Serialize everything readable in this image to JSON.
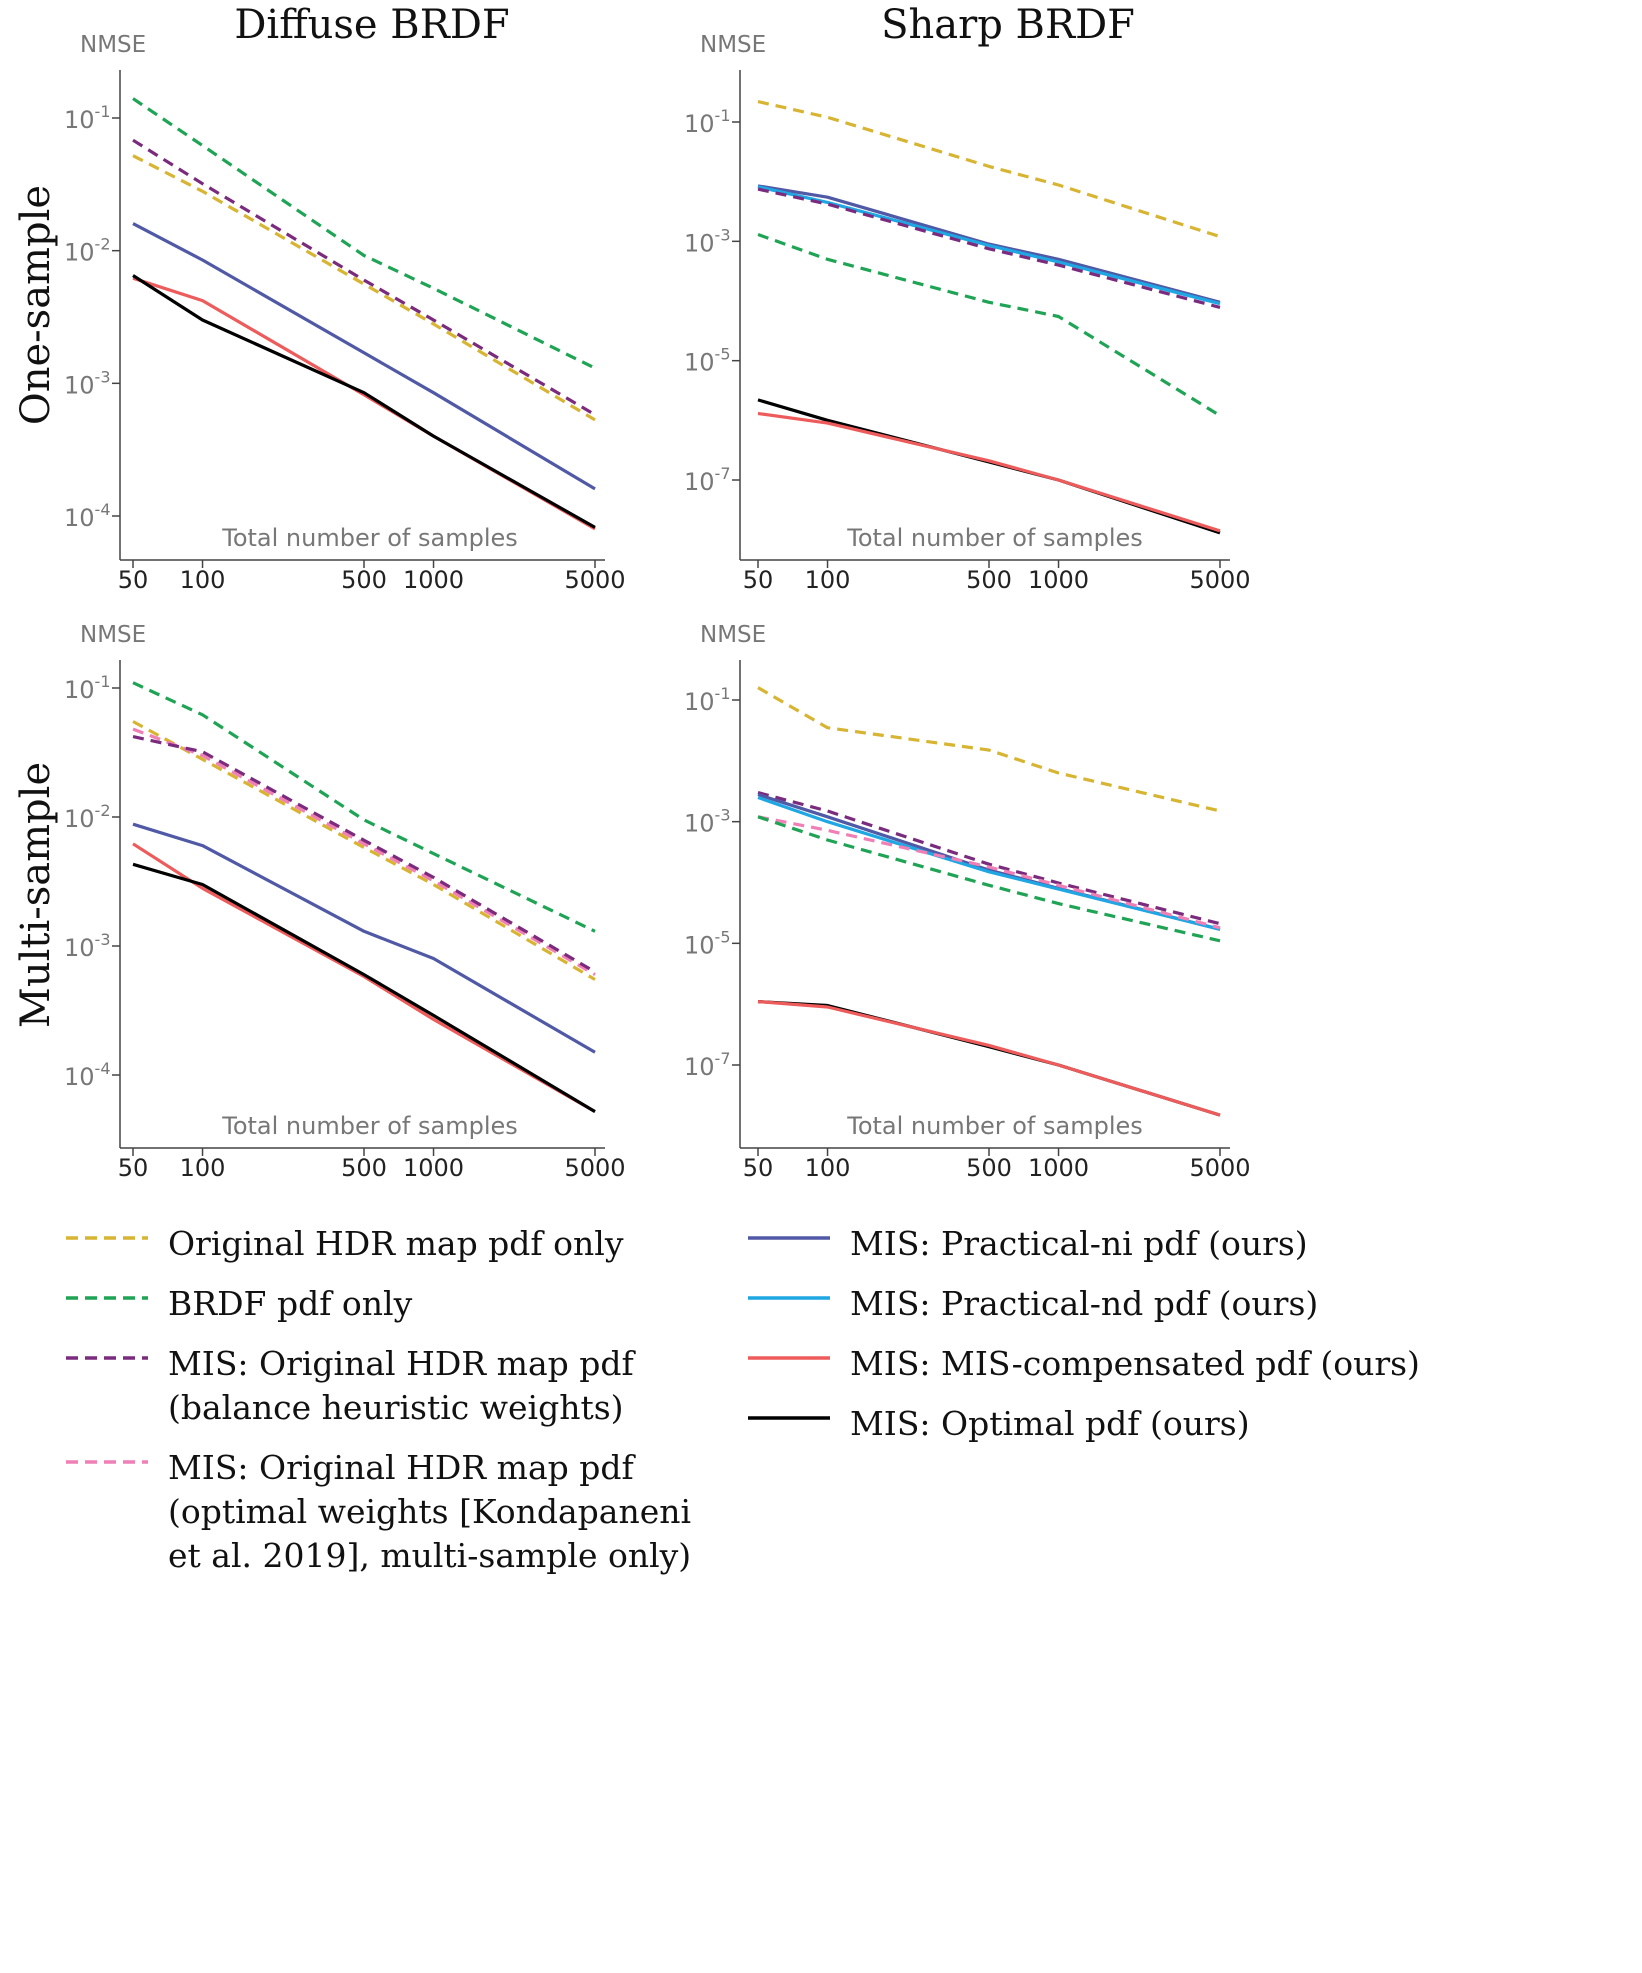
{
  "column_titles": [
    "Diffuse BRDF",
    "Sharp BRDF"
  ],
  "row_titles": [
    "One-sample",
    "Multi-sample"
  ],
  "legend": [
    {
      "key": "hdr",
      "label": "Original HDR map pdf only",
      "color": "#d7b431",
      "dash": true
    },
    {
      "key": "brdf",
      "label": "BRDF pdf only",
      "color": "#1fa455",
      "dash": true
    },
    {
      "key": "mis_hdr_bal",
      "label": "MIS: Original HDR map pdf (balance heuristic weights)",
      "color": "#7b2b7e",
      "dash": true
    },
    {
      "key": "mis_hdr_opt",
      "label": "MIS: Original HDR map pdf (optimal weights [Kondapaneni et al. 2019], multi-sample only)",
      "color": "#ef7fb5",
      "dash": true
    },
    {
      "key": "ni",
      "label": "MIS: Practical-ni pdf (ours)",
      "color": "#5059a6",
      "dash": false
    },
    {
      "key": "nd",
      "label": "MIS: Practical-nd pdf (ours)",
      "color": "#1fa7e4",
      "dash": false
    },
    {
      "key": "comp",
      "label": "MIS: MIS-compensated pdf (ours)",
      "color": "#ee5b5b",
      "dash": false
    },
    {
      "key": "opt",
      "label": "MIS: Optimal pdf (ours)",
      "color": "#000000",
      "dash": false
    }
  ],
  "chart_data": [
    {
      "type": "line",
      "title": "Diffuse BRDF — One-sample",
      "xlabel": "Total number of samples",
      "ylabel": "NMSE",
      "xscale": "log",
      "yscale": "log",
      "xlim": [
        50,
        5000
      ],
      "xticks": [
        {
          "v": 50,
          "label": "50"
        },
        {
          "v": 100,
          "label": "100"
        },
        {
          "v": 500,
          "label": "500"
        },
        {
          "v": 1000,
          "label": "1000"
        },
        {
          "v": 5000,
          "label": "5000"
        }
      ],
      "yticks": [
        {
          "base": "10",
          "exp": "-1",
          "v": 0.1
        },
        {
          "base": "10",
          "exp": "-2",
          "v": 0.01
        },
        {
          "base": "10",
          "exp": "-3",
          "v": 0.001
        },
        {
          "base": "10",
          "exp": "-4",
          "v": 0.0001
        }
      ],
      "x": [
        50,
        100,
        500,
        1000,
        5000
      ],
      "series": [
        {
          "key": "brdf",
          "values": [
            0.14,
            0.062,
            0.0092,
            0.0052,
            0.0013
          ]
        },
        {
          "key": "mis_hdr_bal",
          "values": [
            0.068,
            0.032,
            0.006,
            0.003,
            0.00058
          ]
        },
        {
          "key": "hdr",
          "values": [
            0.052,
            0.028,
            0.0056,
            0.0028,
            0.00053
          ]
        },
        {
          "key": "ni",
          "values": [
            0.016,
            0.0085,
            0.0017,
            0.00085,
            0.00016
          ]
        },
        {
          "key": "comp",
          "values": [
            0.0062,
            0.0042,
            0.00082,
            0.0004,
            8e-05
          ]
        },
        {
          "key": "opt",
          "values": [
            0.0065,
            0.003,
            0.00085,
            0.0004,
            8.2e-05
          ]
        }
      ]
    },
    {
      "type": "line",
      "title": "Sharp BRDF — One-sample",
      "xlabel": "Total number of samples",
      "ylabel": "NMSE",
      "xscale": "log",
      "yscale": "log",
      "xlim": [
        50,
        5000
      ],
      "xticks": [
        {
          "v": 50,
          "label": "50"
        },
        {
          "v": 100,
          "label": "100"
        },
        {
          "v": 500,
          "label": "500"
        },
        {
          "v": 1000,
          "label": "1000"
        },
        {
          "v": 5000,
          "label": "5000"
        }
      ],
      "yticks": [
        {
          "base": "10",
          "exp": "-1",
          "v": 0.1
        },
        {
          "base": "10",
          "exp": "-3",
          "v": 0.001
        },
        {
          "base": "10",
          "exp": "-5",
          "v": 1e-05
        },
        {
          "base": "10",
          "exp": "-7",
          "v": 1e-07
        }
      ],
      "x": [
        50,
        100,
        500,
        1000,
        5000
      ],
      "series": [
        {
          "key": "hdr",
          "values": [
            0.22,
            0.12,
            0.018,
            0.0088,
            0.0012
          ]
        },
        {
          "key": "ni",
          "values": [
            0.0085,
            0.0055,
            0.0009,
            0.0005,
            9.5e-05
          ]
        },
        {
          "key": "nd",
          "values": [
            0.0082,
            0.0045,
            0.00085,
            0.00045,
            9e-05
          ]
        },
        {
          "key": "mis_hdr_bal",
          "values": [
            0.0075,
            0.0042,
            0.00075,
            0.0004,
            7.8e-05
          ]
        },
        {
          "key": "brdf",
          "values": [
            0.0013,
            0.0005,
            9.5e-05,
            5.5e-05,
            1.2e-06
          ]
        },
        {
          "key": "opt",
          "values": [
            2.2e-06,
            1e-06,
            2e-07,
            1e-07,
            1.3e-08
          ]
        },
        {
          "key": "comp",
          "values": [
            1.3e-06,
            9e-07,
            2.1e-07,
            1e-07,
            1.4e-08
          ]
        }
      ]
    },
    {
      "type": "line",
      "title": "Diffuse BRDF — Multi-sample",
      "xlabel": "Total number of samples",
      "ylabel": "NMSE",
      "xscale": "log",
      "yscale": "log",
      "xlim": [
        50,
        5000
      ],
      "xticks": [
        {
          "v": 50,
          "label": "50"
        },
        {
          "v": 100,
          "label": "100"
        },
        {
          "v": 500,
          "label": "500"
        },
        {
          "v": 1000,
          "label": "1000"
        },
        {
          "v": 5000,
          "label": "5000"
        }
      ],
      "yticks": [
        {
          "base": "10",
          "exp": "-1",
          "v": 0.1
        },
        {
          "base": "10",
          "exp": "-2",
          "v": 0.01
        },
        {
          "base": "10",
          "exp": "-3",
          "v": 0.001
        },
        {
          "base": "10",
          "exp": "-4",
          "v": 0.0001
        }
      ],
      "x": [
        50,
        100,
        500,
        1000,
        5000
      ],
      "series": [
        {
          "key": "brdf",
          "values": [
            0.11,
            0.062,
            0.0095,
            0.0052,
            0.0013
          ]
        },
        {
          "key": "hdr",
          "values": [
            0.055,
            0.028,
            0.0058,
            0.003,
            0.00055
          ]
        },
        {
          "key": "mis_hdr_opt",
          "values": [
            0.048,
            0.03,
            0.0062,
            0.0032,
            0.0006
          ]
        },
        {
          "key": "mis_hdr_bal",
          "values": [
            0.042,
            0.032,
            0.0066,
            0.0034,
            0.00063
          ]
        },
        {
          "key": "ni",
          "values": [
            0.0088,
            0.006,
            0.0013,
            0.0008,
            0.00015
          ]
        },
        {
          "key": "comp",
          "values": [
            0.0062,
            0.0028,
            0.00058,
            0.00027,
            5.2e-05
          ]
        },
        {
          "key": "opt",
          "values": [
            0.0043,
            0.003,
            0.0006,
            0.00029,
            5.2e-05
          ]
        }
      ]
    },
    {
      "type": "line",
      "title": "Sharp BRDF — Multi-sample",
      "xlabel": "Total number of samples",
      "ylabel": "NMSE",
      "xscale": "log",
      "yscale": "log",
      "xlim": [
        50,
        5000
      ],
      "xticks": [
        {
          "v": 50,
          "label": "50"
        },
        {
          "v": 100,
          "label": "100"
        },
        {
          "v": 500,
          "label": "500"
        },
        {
          "v": 1000,
          "label": "1000"
        },
        {
          "v": 5000,
          "label": "5000"
        }
      ],
      "yticks": [
        {
          "base": "10",
          "exp": "-1",
          "v": 0.1
        },
        {
          "base": "10",
          "exp": "-3",
          "v": 0.001
        },
        {
          "base": "10",
          "exp": "-5",
          "v": 1e-05
        },
        {
          "base": "10",
          "exp": "-7",
          "v": 1e-07
        }
      ],
      "x": [
        50,
        100,
        500,
        1000,
        5000
      ],
      "series": [
        {
          "key": "hdr",
          "values": [
            0.16,
            0.035,
            0.015,
            0.0063,
            0.0015
          ]
        },
        {
          "key": "mis_hdr_bal",
          "values": [
            0.003,
            0.0015,
            0.0002,
            9.8e-05,
            2.1e-05
          ]
        },
        {
          "key": "ni",
          "values": [
            0.0028,
            0.0012,
            0.00016,
            8e-05,
            1.7e-05
          ]
        },
        {
          "key": "nd",
          "values": [
            0.0025,
            0.001,
            0.00015,
            7.8e-05,
            1.7e-05
          ]
        },
        {
          "key": "mis_hdr_opt",
          "values": [
            0.0012,
            0.00072,
            0.00018,
            9e-05,
            1.8e-05
          ]
        },
        {
          "key": "brdf",
          "values": [
            0.0012,
            0.0005,
            9e-05,
            4.5e-05,
            1.1e-05
          ]
        },
        {
          "key": "opt",
          "values": [
            1.1e-06,
            9.5e-07,
            2e-07,
            1e-07,
            1.5e-08
          ]
        },
        {
          "key": "comp",
          "values": [
            1.1e-06,
            9e-07,
            2.1e-07,
            1e-07,
            1.5e-08
          ]
        }
      ]
    }
  ]
}
